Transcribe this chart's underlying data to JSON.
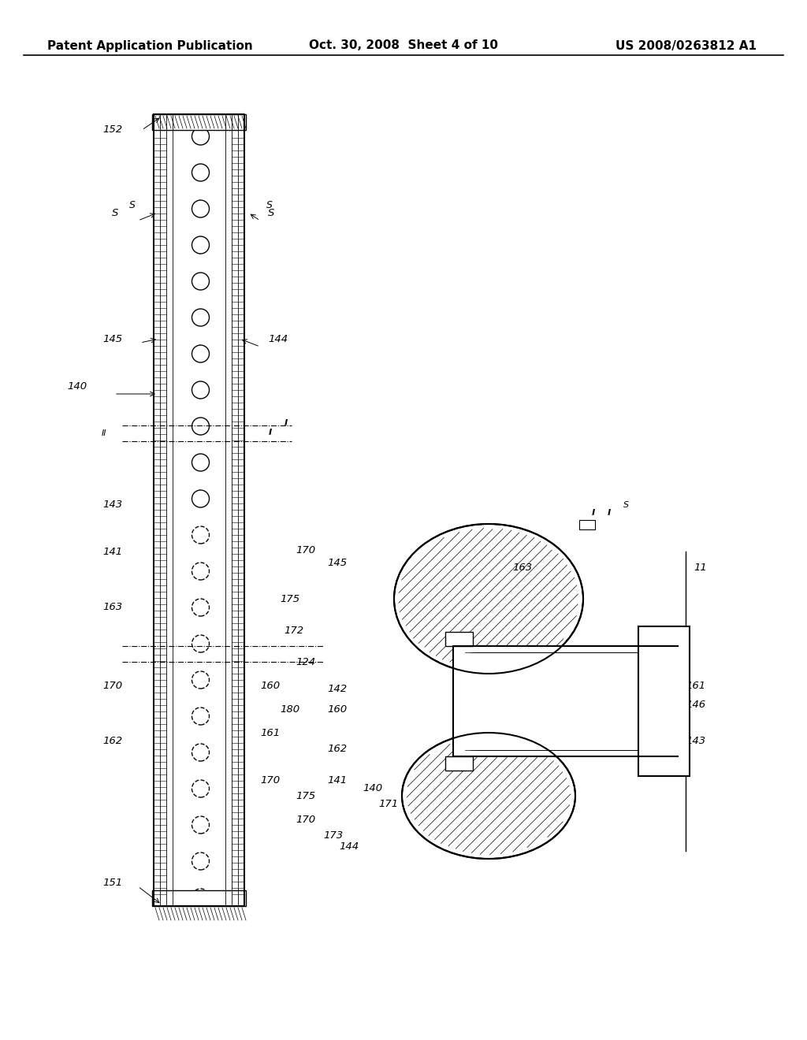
{
  "bg_color": "#ffffff",
  "header_left": "Patent Application Publication",
  "header_center": "Oct. 30, 2008  Sheet 4 of 10",
  "header_right": "US 2008/0263812 A1",
  "title_fontsize": 11,
  "label_fontsize": 9.5
}
